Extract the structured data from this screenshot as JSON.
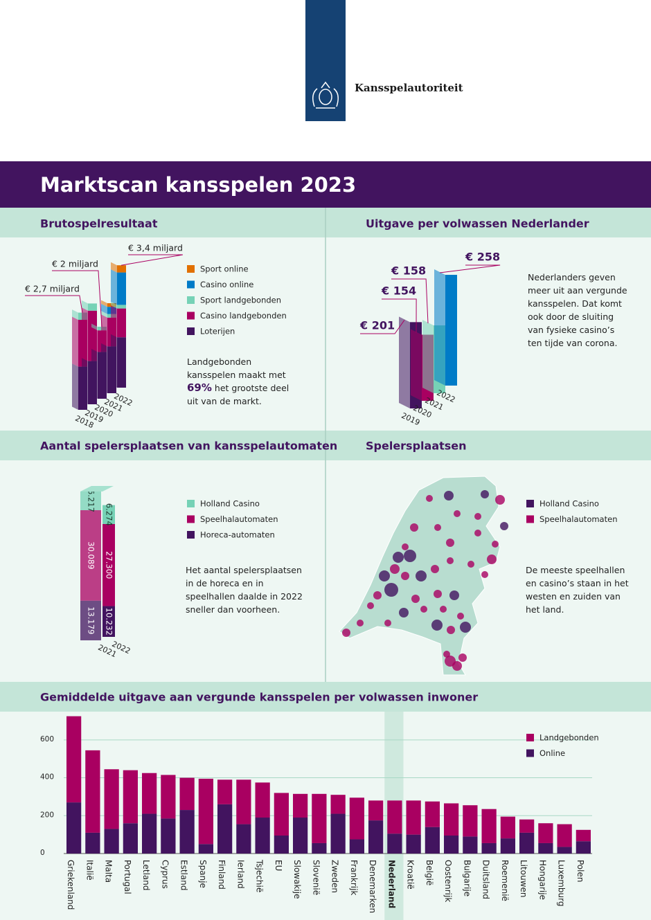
{
  "header": {
    "organization": "Kansspelautoriteit"
  },
  "title": "Marktscan kansspelen 2023",
  "chart_data": [
    {
      "type": "bar",
      "stacked": true,
      "title": "Brutospelresultaat",
      "categories": [
        "2018",
        "2019",
        "2020",
        "2021",
        "2022"
      ],
      "series": [
        {
          "name": "Loterijen",
          "color": "#42145f",
          "values": [
            1.2,
            1.2,
            1.3,
            1.3,
            1.4
          ]
        },
        {
          "name": "Casino landgebonden",
          "color": "#a90061",
          "values": [
            1.3,
            1.4,
            0.6,
            0.8,
            0.8
          ]
        },
        {
          "name": "Sport landgebonden",
          "color": "#76d2b6",
          "values": [
            0.2,
            0.2,
            0.1,
            0.1,
            0.1
          ]
        },
        {
          "name": "Casino online",
          "color": "#007bc7",
          "values": [
            0,
            0,
            0,
            0.2,
            0.9
          ]
        },
        {
          "name": "Sport online",
          "color": "#e17000",
          "values": [
            0,
            0,
            0,
            0.1,
            0.2
          ]
        }
      ],
      "annotations": [
        {
          "category": "2018",
          "label": "€ 2,7 miljard"
        },
        {
          "category": "2020",
          "label": "€ 2 miljard"
        },
        {
          "category": "2022",
          "label": "€ 3,4 miljard"
        }
      ],
      "text": {
        "before": "Landgebonden kansspelen maakt met",
        "highlight": "69%",
        "after": "het grootste deel uit van de markt."
      }
    },
    {
      "type": "bar",
      "title": "Uitgave per volwassen Nederlander",
      "categories": [
        "2019",
        "2020",
        "2021",
        "2022"
      ],
      "values": [
        201,
        154,
        158,
        258
      ],
      "value_labels": [
        "€ 201",
        "€ 154",
        "€ 158",
        "€ 258"
      ],
      "colors": [
        "#42145f",
        "#a90061",
        "#76d2b6",
        "#007bc7"
      ],
      "text": "Nederlanders geven meer uit aan vergunde kansspelen. Dat komt ook door de sluiting van fysieke casino’s ten tijde van corona."
    },
    {
      "type": "bar",
      "stacked": true,
      "title": "Aantal spelersplaatsen van kansspelautomaten",
      "categories": [
        "2021",
        "2022"
      ],
      "series": [
        {
          "name": "Horeca-automaten",
          "color": "#42145f",
          "values": [
            13179,
            10232
          ],
          "value_labels": [
            "13.179",
            "10.232"
          ]
        },
        {
          "name": "Speelhalautomaten",
          "color": "#a90061",
          "values": [
            30089,
            27300
          ],
          "value_labels": [
            "30.089",
            "27.300"
          ]
        },
        {
          "name": "Holland Casino",
          "color": "#76d2b6",
          "values": [
            6217,
            6274
          ],
          "value_labels": [
            "6.217",
            "6.274"
          ]
        }
      ],
      "text": "Het aantal spelersplaatsen in de horeca en in speelhallen daalde in 2022 sneller dan voorheen."
    },
    {
      "type": "bar",
      "stacked": true,
      "title": "Gemiddelde uitgave aan vergunde kansspelen per volwassen inwoner",
      "categories": [
        "Griekenland",
        "Italië",
        "Malta",
        "Portugal",
        "Letland",
        "Cyprus",
        "Estland",
        "Spanje",
        "Finland",
        "Ierland",
        "Tsjechië",
        "EU",
        "Slowakije",
        "Slovenië",
        "Zweden",
        "Frankrijk",
        "Denemarken",
        "Nederland",
        "Kroatië",
        "België",
        "Oostenrijk",
        "Bulgarije",
        "Duitsland",
        "Roemenië",
        "Litouwen",
        "Hongarije",
        "Luxemburg",
        "Polen"
      ],
      "series": [
        {
          "name": "Online",
          "color": "#42145f",
          "values": [
            270,
            110,
            130,
            160,
            210,
            185,
            230,
            50,
            260,
            155,
            190,
            95,
            190,
            55,
            210,
            75,
            175,
            105,
            100,
            140,
            95,
            90,
            55,
            80,
            110,
            55,
            35,
            65
          ]
        },
        {
          "name": "Landgebonden",
          "color": "#a90061",
          "values": [
            455,
            435,
            315,
            280,
            215,
            230,
            170,
            345,
            130,
            235,
            185,
            225,
            125,
            260,
            100,
            220,
            105,
            175,
            180,
            135,
            170,
            165,
            180,
            115,
            70,
            105,
            120,
            60
          ]
        }
      ],
      "ylim": [
        0,
        720
      ],
      "yticks": [
        0,
        200,
        400,
        600
      ],
      "grid": true,
      "highlight": "Nederland"
    }
  ],
  "map": {
    "title": "Spelersplaatsen",
    "legend": [
      {
        "name": "Holland Casino",
        "color": "#42145f"
      },
      {
        "name": "Speelhalautomaten",
        "color": "#a90061"
      }
    ],
    "text": "De meeste speelhallen en casino’s staan in het westen en zuiden van het land."
  }
}
